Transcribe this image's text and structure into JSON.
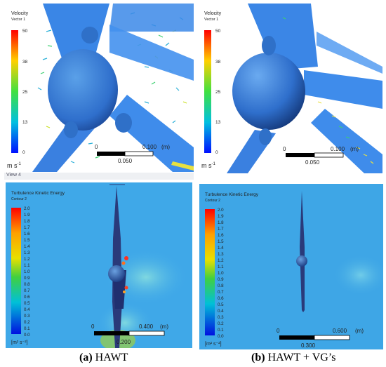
{
  "panels": {
    "top_left": {
      "title": "Velocity",
      "subtitle": "Vector 1",
      "legend_ticks": [
        "50",
        "38",
        "25",
        "13",
        "0"
      ],
      "unit": "m s",
      "unit_exp": "-1",
      "scale_left": "0",
      "scale_right": "0.100",
      "scale_unit": "(m)",
      "scale_mid": "0.050",
      "view_label": "View 4"
    },
    "top_right": {
      "title": "Velocity",
      "subtitle": "Vector 1",
      "legend_ticks": [
        "50",
        "38",
        "25",
        "13",
        "0"
      ],
      "unit": "m s",
      "unit_exp": "-1",
      "scale_left": "0",
      "scale_right": "0.100",
      "scale_unit": "(m)",
      "scale_mid": "0.050"
    },
    "bottom_left": {
      "title": "Turbulence Kinetic Energy",
      "subtitle": "Contour 2",
      "legend_ticks": [
        "2.0",
        "1.9",
        "1.8",
        "1.7",
        "1.6",
        "1.5",
        "1.4",
        "1.3",
        "1.2",
        "1.1",
        "1.0",
        "0.9",
        "0.8",
        "0.7",
        "0.6",
        "0.5",
        "0.4",
        "0.3",
        "0.2",
        "0.1",
        "0.0"
      ],
      "unit": "[m² s⁻²]",
      "scale_left": "0",
      "scale_right": "0.400",
      "scale_unit": "(m)",
      "scale_mid": "0.200"
    },
    "bottom_right": {
      "title": "Turbulence Kinetic Energy",
      "subtitle": "Contour 2",
      "legend_ticks": [
        "2.0",
        "1.9",
        "1.8",
        "1.7",
        "1.6",
        "1.5",
        "1.4",
        "1.3",
        "1.2",
        "1.1",
        "1.0",
        "0.9",
        "0.8",
        "0.7",
        "0.6",
        "0.5",
        "0.4",
        "0.3",
        "0.2",
        "0.1",
        "0.0"
      ],
      "unit": "[m² s⁻²]",
      "scale_left": "0",
      "scale_right": "0.600",
      "scale_unit": "(m)",
      "scale_mid": "0.300"
    }
  },
  "captions": {
    "a_label": "(a)",
    "a_text": " HAWT",
    "b_label": "(b)",
    "b_text": " HAWT + VG’s"
  }
}
